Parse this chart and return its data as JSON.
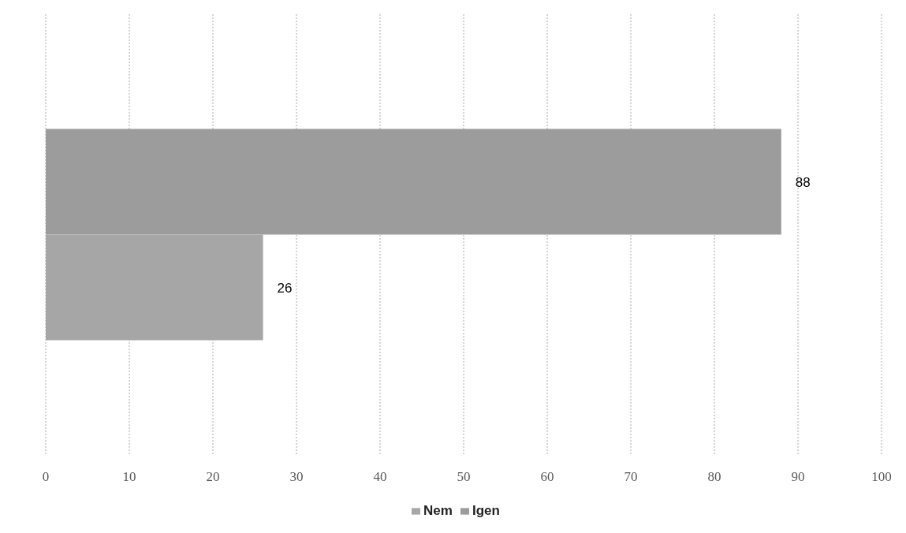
{
  "chart_data": {
    "type": "bar",
    "orientation": "horizontal",
    "categories": [
      null
    ],
    "series": [
      {
        "name": "Nem",
        "color": "#a6a6a6",
        "values": [
          26
        ]
      },
      {
        "name": "Igen",
        "color": "#9c9c9c",
        "values": [
          88
        ]
      }
    ],
    "xlim": [
      0,
      100
    ],
    "xticks": [
      0,
      10,
      20,
      30,
      40,
      50,
      60,
      70,
      80,
      90,
      100
    ],
    "grid": "x",
    "legend": "bottom",
    "data_labels": true
  }
}
